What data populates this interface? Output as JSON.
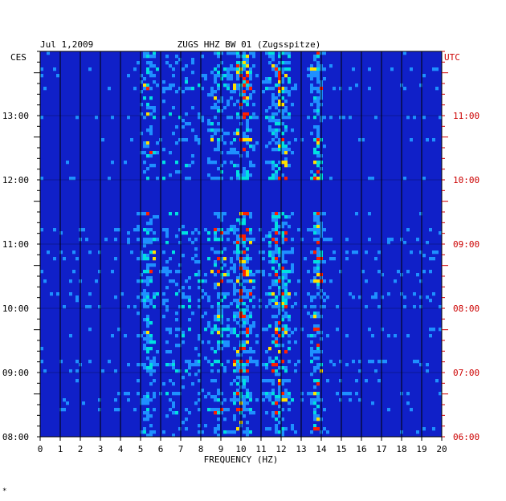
{
  "chart_data": {
    "type": "heatmap",
    "title_left": "Jul 1,2009",
    "title": "ZUGS HHZ BW 01 (Zugsspitze)",
    "xlabel": "FREQUENCY (HZ)",
    "left_axis_label": "CES",
    "right_axis_label": "UTC",
    "xlim": [
      0,
      20
    ],
    "x_ticks": [
      "0",
      "1",
      "2",
      "3",
      "4",
      "5",
      "6",
      "7",
      "8",
      "9",
      "10",
      "11",
      "12",
      "13",
      "14",
      "15",
      "16",
      "17",
      "18",
      "19",
      "20"
    ],
    "left_time_labels": [
      "13:00",
      "12:00",
      "11:00",
      "10:00",
      "09:00",
      "08:00"
    ],
    "right_time_labels": [
      "11:00",
      "10:00",
      "09:00",
      "08:00",
      "07:00",
      "06:00"
    ],
    "footer_mark": "*",
    "colors": {
      "background": "#1020c8",
      "low": "#0818b0",
      "mid": "#1e90ff",
      "high": "#00e0e0",
      "hot": "#ffe000",
      "peak": "#ff2000",
      "grid": "#000000",
      "utc": "#cc0000"
    },
    "bands": [
      {
        "center_hz": 10.1,
        "width_hz": 0.5,
        "intensity": 0.9
      },
      {
        "center_hz": 11.9,
        "width_hz": 0.6,
        "intensity": 0.85
      },
      {
        "center_hz": 13.8,
        "width_hz": 0.3,
        "intensity": 0.8
      },
      {
        "center_hz": 5.4,
        "width_hz": 0.4,
        "intensity": 0.6
      },
      {
        "center_hz": 9.0,
        "width_hz": 0.4,
        "intensity": 0.5
      }
    ],
    "quiet_interval_ces": [
      "11:30",
      "12:00"
    ]
  }
}
